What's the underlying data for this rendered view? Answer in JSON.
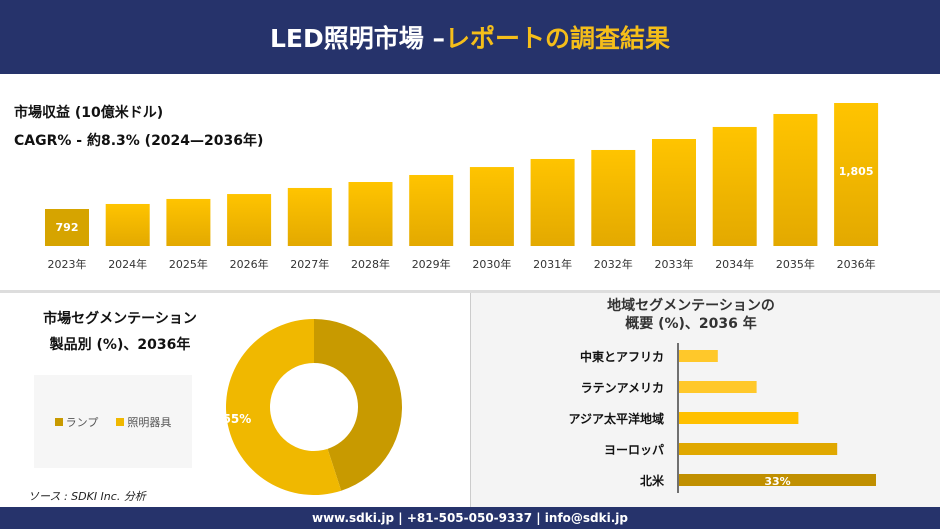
{
  "header": {
    "title_main": "LED照明市場 –",
    "title_accent": "レポートの調査結果"
  },
  "revenue": {
    "label": "市場収益 (10億米ドル)",
    "cagr": "CAGR% - 約8.3% (2024—2036年)"
  },
  "chart_data": [
    {
      "type": "bar",
      "categories": [
        "2023年",
        "2024年",
        "2025年",
        "2026年",
        "2027年",
        "2028年",
        "2029年",
        "2030年",
        "2031年",
        "2032年",
        "2033年",
        "2034年",
        "2035年",
        "2036年"
      ],
      "values": [
        792,
        840,
        888,
        935,
        993,
        1050,
        1117,
        1193,
        1270,
        1356,
        1461,
        1576,
        1700,
        1805
      ],
      "data_labels": {
        "0": "792",
        "13": "1,805"
      },
      "color": "#f0b800"
    },
    {
      "type": "pie",
      "title": "市場セグメンテーション",
      "subtitle": "製品別 (%)、2036年",
      "slices": [
        {
          "name": "ランプ",
          "value": 45,
          "color": "#c89a00"
        },
        {
          "name": "照明器具",
          "value": 55,
          "color": "#f0b800",
          "label": "55%"
        }
      ],
      "legend": "left"
    },
    {
      "type": "bar",
      "orientation": "horizontal",
      "title": "地域セグメンテーションの",
      "subtitle": "概要 (%)、2036 年",
      "categories": [
        "中東とアフリカ",
        "ラテンアメリカ",
        "アジア太平洋地域",
        "ヨーロッパ",
        "北米"
      ],
      "values": [
        6.5,
        13,
        20,
        26.5,
        33
      ],
      "data_labels": {
        "4": "33%"
      },
      "colors": [
        "#ffc82a",
        "#ffc82a",
        "#ffc000",
        "#e0a800",
        "#c08f00"
      ]
    }
  ],
  "source": "ソース : SDKI Inc. 分析",
  "footer": "www.sdki.jp | +81-505-050-9337 | info@sdki.jp"
}
